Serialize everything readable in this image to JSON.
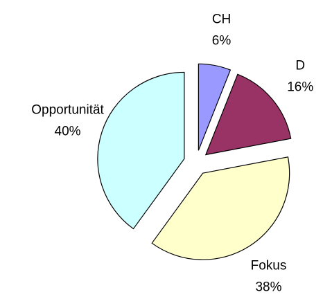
{
  "chart_data": {
    "type": "pie",
    "categories": [
      "CH",
      "D",
      "Fokus",
      "Opportunität"
    ],
    "values": [
      6,
      16,
      38,
      40
    ],
    "value_labels": [
      "6%",
      "16%",
      "38%",
      "40%"
    ],
    "colors": [
      "#9999ff",
      "#993366",
      "#ffffcc",
      "#ccffff"
    ]
  }
}
